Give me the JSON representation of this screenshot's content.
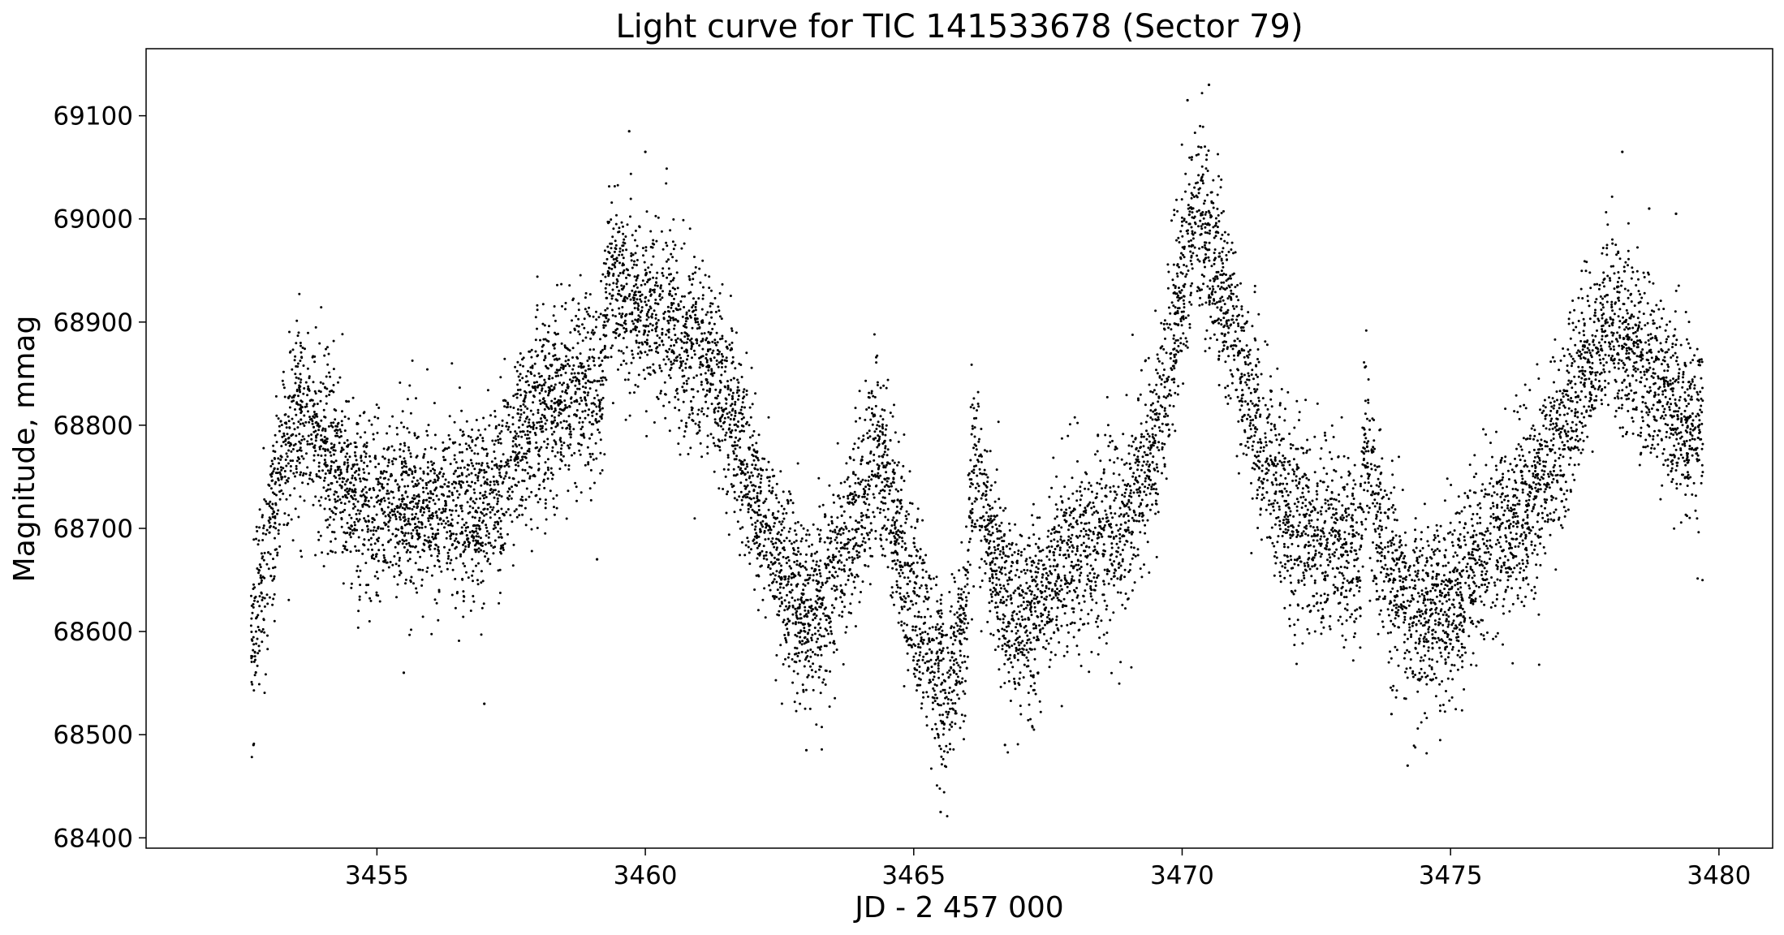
{
  "chart_data": {
    "type": "scatter",
    "title": "Light curve for TIC 141533678 (Sector 79)",
    "xlabel": "JD - 2 457 000",
    "ylabel": "Magnitude, mmag",
    "xlim": [
      3450.7,
      3481.0
    ],
    "ylim": [
      68390,
      69165
    ],
    "xticks": [
      3455,
      3460,
      3465,
      3470,
      3475,
      3480
    ],
    "yticks": [
      68400,
      68500,
      68600,
      68700,
      68800,
      68900,
      69000,
      69100
    ],
    "grid": false,
    "marker_color": "#000000",
    "series": [
      {
        "trend_x": [
          3452.65,
          3452.9,
          3453.2,
          3453.5,
          3453.8,
          3454.2,
          3454.6,
          3455.0,
          3455.5,
          3456.0,
          3456.5,
          3457.0,
          3457.3,
          3457.4,
          3457.6,
          3458.0,
          3458.5,
          3459.0,
          3459.2,
          3459.3,
          3459.6,
          3460.0,
          3460.5,
          3461.0,
          3461.5,
          3462.0,
          3462.5,
          3462.9,
          3463.2,
          3463.6,
          3464.0,
          3464.3,
          3464.6,
          3465.0,
          3465.3,
          3465.6,
          3465.95,
          3466.1,
          3466.4,
          3466.8,
          3467.2,
          3467.6,
          3468.0,
          3468.5,
          3469.0,
          3469.5,
          3470.0,
          3470.3,
          3470.6,
          3471.0,
          3471.5,
          3472.0,
          3472.5,
          3473.0,
          3473.3,
          3473.4,
          3473.7,
          3474.0,
          3474.5,
          3475.0,
          3475.5,
          3476.0,
          3476.5,
          3477.0,
          3477.5,
          3478.0,
          3478.5,
          3479.0,
          3479.3,
          3479.7
        ],
        "trend_y": [
          68580,
          68660,
          68760,
          68810,
          68800,
          68760,
          68730,
          68720,
          68725,
          68718,
          68712,
          68720,
          68735,
          68770,
          68790,
          68810,
          68825,
          68840,
          68850,
          68940,
          68930,
          68915,
          68895,
          68870,
          68830,
          68740,
          68660,
          68620,
          68620,
          68660,
          68720,
          68780,
          68710,
          68630,
          68590,
          68540,
          68600,
          68770,
          68690,
          68620,
          68610,
          68650,
          68680,
          68690,
          68710,
          68780,
          68940,
          69010,
          68960,
          68880,
          68770,
          68710,
          68690,
          68680,
          68670,
          68790,
          68690,
          68640,
          68610,
          68630,
          68670,
          68700,
          68730,
          68780,
          68850,
          68900,
          68870,
          68830,
          68800,
          68790
        ],
        "scatter_mmag": 45,
        "outliers": [
          [
            3452.7,
            68490
          ],
          [
            3457.0,
            68530
          ],
          [
            3455.5,
            68560
          ],
          [
            3459.1,
            68670
          ],
          [
            3459.7,
            69085
          ],
          [
            3460.0,
            69065
          ],
          [
            3465.5,
            68425
          ],
          [
            3466.7,
            68490
          ],
          [
            3463.0,
            68485
          ],
          [
            3470.5,
            69130
          ],
          [
            3470.1,
            69115
          ],
          [
            3474.2,
            68470
          ],
          [
            3478.2,
            69065
          ],
          [
            3478.7,
            69010
          ],
          [
            3479.2,
            69005
          ],
          [
            3473.9,
            68520
          ]
        ],
        "point_count": 11000
      }
    ]
  }
}
